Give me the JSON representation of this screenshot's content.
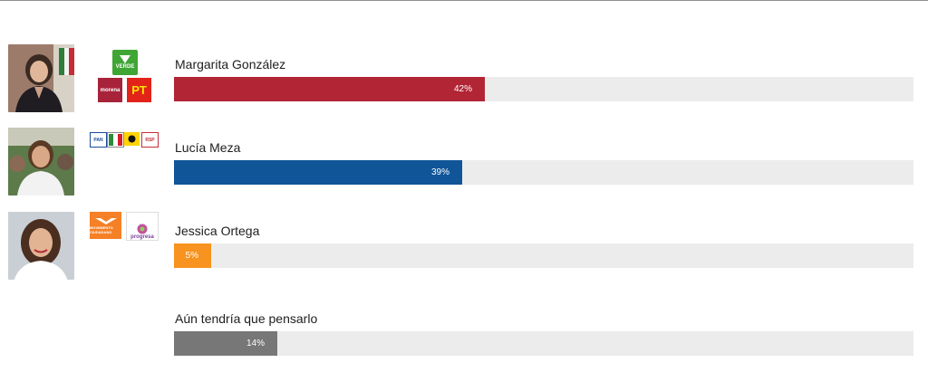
{
  "chart_data": {
    "type": "bar",
    "orientation": "horizontal",
    "categories": [
      "Margarita González",
      "Lucía Meza",
      "Jessica Ortega",
      "Aún tendría que pensarlo"
    ],
    "values": [
      42,
      39,
      5,
      14
    ],
    "value_labels": [
      "42%",
      "39%",
      "5%",
      "14%"
    ],
    "colors": [
      "#b22535",
      "#0f5597",
      "#f7931e",
      "#777777"
    ],
    "xlim": [
      0,
      100
    ]
  },
  "logos": {
    "verde": "VERDE",
    "morena": "morena",
    "pt": "PT",
    "pan": "PAN",
    "rsp": "RSP",
    "mc": "MOVIMIENTO CIUDADANO",
    "progresa": "progresa"
  }
}
